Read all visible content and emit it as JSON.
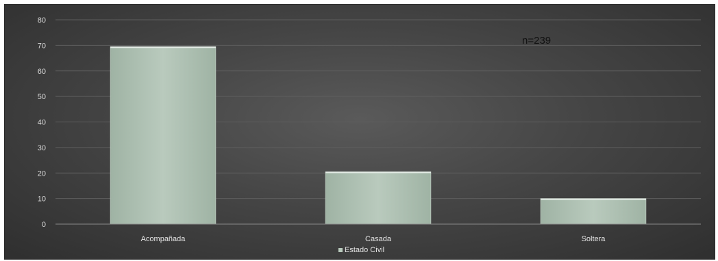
{
  "chart_data": {
    "type": "bar",
    "categories": [
      "Acompañada",
      "Casada",
      "Soltera"
    ],
    "series": [
      {
        "name": "Estado Civil",
        "values": [
          69.5,
          20.5,
          10
        ]
      }
    ],
    "annotation": "n=239",
    "ylim": [
      0,
      80
    ],
    "yticks": [
      0,
      10,
      20,
      30,
      40,
      50,
      60,
      70,
      80
    ],
    "grid": true,
    "legend_position": "bottom",
    "colors": {
      "bar": "#9fb3a4",
      "bar_top": "#b9cabd",
      "grid": "#5e5e5e"
    }
  }
}
